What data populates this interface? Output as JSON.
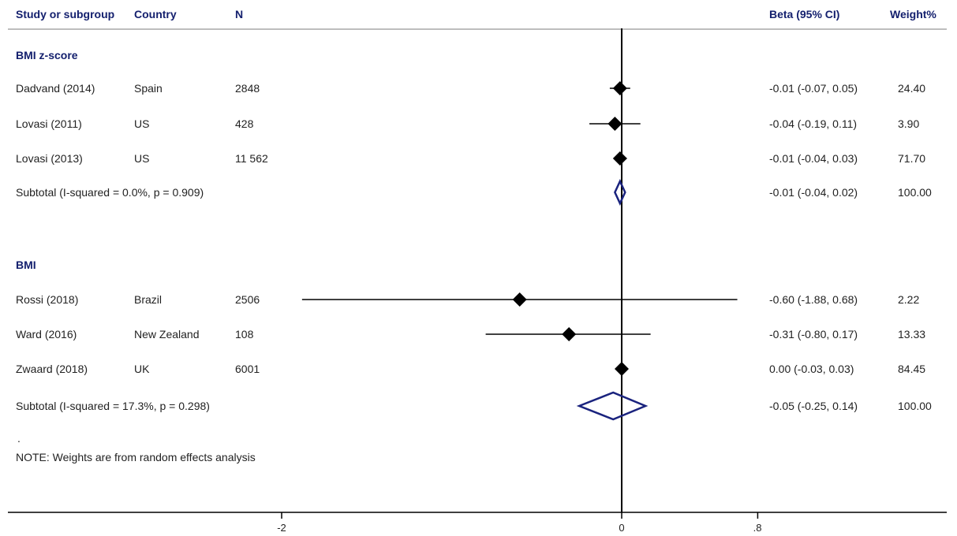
{
  "header": {
    "study": "Study or subgroup",
    "country": "Country",
    "n": "N",
    "beta": "Beta (95% CI)",
    "weight": "Weight%"
  },
  "chart_data": {
    "type": "forest",
    "xaxis": {
      "ticks": [
        -2,
        0,
        0.8
      ],
      "tick_labels": [
        "-2",
        "0",
        ".8"
      ],
      "xlim": [
        -2.0,
        0.8
      ],
      "reference_line": 0
    },
    "groups": [
      {
        "label": "BMI z-score",
        "studies": [
          {
            "study": "Dadvand (2014)",
            "country": "Spain",
            "n": "2848",
            "beta": -0.01,
            "ci": [
              -0.07,
              0.05
            ],
            "ci_text": "-0.01 (-0.07, 0.05)",
            "weight": "24.40"
          },
          {
            "study": "Lovasi (2011)",
            "country": "US",
            "n": "428",
            "beta": -0.04,
            "ci": [
              -0.19,
              0.11
            ],
            "ci_text": "-0.04 (-0.19, 0.11)",
            "weight": "3.90"
          },
          {
            "study": "Lovasi (2013)",
            "country": "US",
            "n": "11 562",
            "beta": -0.01,
            "ci": [
              -0.04,
              0.03
            ],
            "ci_text": "-0.01 (-0.04, 0.03)",
            "weight": "71.70"
          }
        ],
        "subtotal": {
          "label": "Subtotal  (I-squared = 0.0%, p = 0.909)",
          "beta": -0.01,
          "ci": [
            -0.04,
            0.02
          ],
          "ci_text": "-0.01 (-0.04, 0.02)",
          "weight": "100.00"
        }
      },
      {
        "label": "BMI",
        "studies": [
          {
            "study": "Rossi  (2018)",
            "country": "Brazil",
            "n": "2506",
            "beta": -0.6,
            "ci": [
              -1.88,
              0.68
            ],
            "ci_text": "-0.60 (-1.88, 0.68)",
            "weight": "2.22"
          },
          {
            "study": "Ward (2016)",
            "country": "New Zealand",
            "n": "108",
            "beta": -0.31,
            "ci": [
              -0.8,
              0.17
            ],
            "ci_text": "-0.31 (-0.80, 0.17)",
            "weight": "13.33"
          },
          {
            "study": "Zwaard  (2018)",
            "country": "UK",
            "n": "6001",
            "beta": 0.0,
            "ci": [
              -0.03,
              0.03
            ],
            "ci_text": "0.00 (-0.03, 0.03)",
            "weight": "84.45"
          }
        ],
        "subtotal": {
          "label": "Subtotal  (I-squared = 17.3%, p = 0.298)",
          "beta": -0.05,
          "ci": [
            -0.25,
            0.14
          ],
          "ci_text": "-0.05 (-0.25, 0.14)",
          "weight": "100.00"
        }
      }
    ],
    "dot": ".",
    "note": "NOTE: Weights are from random effects analysis",
    "colors": {
      "header_text": "#14206e",
      "diamond": "#1a237e",
      "marker": "#000000"
    }
  }
}
